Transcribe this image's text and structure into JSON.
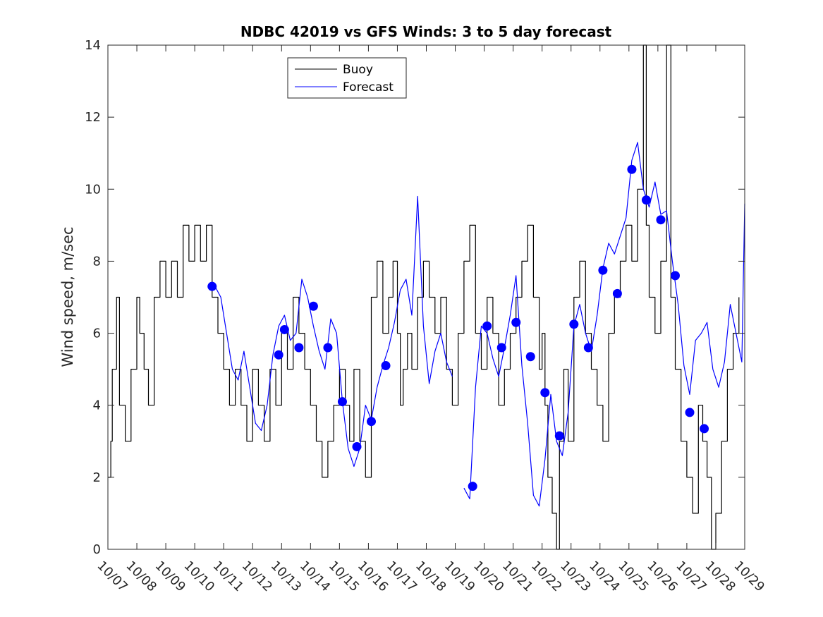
{
  "chart_data": {
    "type": "line",
    "title": "NDBC 42019 vs GFS Winds: 3 to 5 day forecast",
    "xlabel": "",
    "ylabel": "Wind speed, m/sec",
    "xlim": [
      7,
      29
    ],
    "ylim": [
      0,
      14
    ],
    "yticks": [
      0,
      2,
      4,
      6,
      8,
      10,
      12,
      14
    ],
    "xtick_values": [
      7,
      8,
      9,
      10,
      11,
      12,
      13,
      14,
      15,
      16,
      17,
      18,
      19,
      20,
      21,
      22,
      23,
      24,
      25,
      26,
      27,
      28,
      29
    ],
    "xtick_labels": [
      "10/07",
      "10/08",
      "10/09",
      "10/10",
      "10/11",
      "10/12",
      "10/13",
      "10/14",
      "10/15",
      "10/16",
      "10/17",
      "10/18",
      "10/19",
      "10/20",
      "10/21",
      "10/22",
      "10/23",
      "10/24",
      "10/25",
      "10/26",
      "10/27",
      "10/28",
      "10/29"
    ],
    "legend": {
      "location": "top-left",
      "entries": [
        "Buoy",
        "Forecast"
      ]
    },
    "colors": {
      "buoy": "#000000",
      "forecast": "#0000ff",
      "marker": "#0000ff"
    },
    "series": [
      {
        "name": "Buoy",
        "x": [
          7.0,
          7.1,
          7.15,
          7.3,
          7.4,
          7.6,
          7.8,
          8.0,
          8.1,
          8.25,
          8.4,
          8.6,
          8.8,
          9.0,
          9.2,
          9.4,
          9.6,
          9.8,
          10.0,
          10.2,
          10.4,
          10.6,
          10.8,
          11.0,
          11.2,
          11.4,
          11.6,
          11.8,
          12.0,
          12.2,
          12.4,
          12.6,
          12.8,
          13.0,
          13.2,
          13.4,
          13.6,
          13.8,
          14.0,
          14.2,
          14.4,
          14.6,
          14.8,
          15.0,
          15.2,
          15.35,
          15.5,
          15.7,
          15.9,
          16.1,
          16.3,
          16.5,
          16.7,
          16.85,
          17.0,
          17.1,
          17.2,
          17.35,
          17.5,
          17.7,
          17.9,
          18.1,
          18.3,
          18.5,
          18.7,
          18.9,
          19.1,
          19.3,
          19.5,
          19.7,
          19.9,
          20.1,
          20.3,
          20.5,
          20.7,
          20.9,
          21.1,
          21.3,
          21.5,
          21.7,
          21.9,
          22.0,
          22.1,
          22.2,
          22.35,
          22.5,
          22.6,
          22.75,
          22.9,
          23.1,
          23.3,
          23.5,
          23.7,
          23.9,
          24.1,
          24.3,
          24.5,
          24.7,
          24.9,
          25.1,
          25.3,
          25.5,
          25.6,
          25.7,
          25.9,
          26.1,
          26.3,
          26.45,
          26.6,
          26.8,
          27.0,
          27.2,
          27.4,
          27.55,
          27.7,
          27.85,
          28.0,
          28.2,
          28.4,
          28.6,
          28.8
        ],
        "values": [
          2,
          3,
          5,
          7,
          4,
          3,
          5,
          7,
          6,
          5,
          4,
          7,
          8,
          7,
          8,
          7,
          9,
          8,
          9,
          8,
          9,
          7,
          6,
          5,
          4,
          5,
          4,
          3,
          5,
          4,
          3,
          5,
          4,
          6,
          5,
          7,
          6,
          5,
          4,
          3,
          2,
          3,
          4,
          5,
          4,
          3,
          5,
          3,
          2,
          7,
          8,
          6,
          7,
          8,
          6,
          4,
          5,
          6,
          5,
          7,
          8,
          7,
          6,
          7,
          5,
          4,
          6,
          8,
          9,
          6,
          5,
          7,
          6,
          4,
          5,
          6,
          7,
          8,
          9,
          7,
          5,
          6,
          4,
          2,
          1,
          0,
          3,
          5,
          3,
          7,
          8,
          6,
          5,
          4,
          3,
          6,
          7,
          8,
          9,
          8,
          10,
          14,
          9,
          7,
          6,
          8,
          14,
          7,
          5,
          3,
          2,
          1,
          4,
          3,
          2,
          0,
          1,
          3,
          5,
          6,
          7
        ]
      },
      {
        "name": "Forecast",
        "x": [
          10.7,
          10.9,
          11.1,
          11.3,
          11.5,
          11.7,
          11.9,
          12.1,
          12.3,
          12.5,
          12.7,
          12.9,
          13.1,
          13.3,
          13.5,
          13.7,
          13.9,
          14.1,
          14.3,
          14.5,
          14.7,
          14.9,
          15.1,
          15.3,
          15.5,
          15.7,
          15.9,
          16.1,
          16.3,
          16.5,
          16.7,
          16.9,
          17.1,
          17.3,
          17.5,
          17.7,
          17.9,
          18.1,
          18.3,
          18.5,
          18.7,
          18.9,
          19.1,
          19.3,
          19.5,
          19.7,
          19.9,
          20.1,
          20.3,
          20.5,
          20.7,
          20.9,
          21.1,
          21.3,
          21.5,
          21.7,
          21.9,
          22.1,
          22.3,
          22.5,
          22.7,
          22.9,
          23.1,
          23.3,
          23.5,
          23.7,
          23.9,
          24.1,
          24.3,
          24.5,
          24.7,
          24.9,
          25.1,
          25.3,
          25.5,
          25.7,
          25.9,
          26.1,
          26.3,
          26.5,
          26.7,
          26.9,
          27.1,
          27.3,
          27.5,
          27.7,
          27.9,
          28.1,
          28.3,
          28.5,
          28.7,
          28.9,
          29.0
        ],
        "values": [
          7.3,
          7,
          6,
          5,
          4.7,
          5.5,
          4.5,
          3.5,
          3.3,
          4,
          5.4,
          6.2,
          6.5,
          5.8,
          6,
          7.5,
          7,
          6.2,
          5.5,
          5,
          6.4,
          6,
          4.1,
          2.8,
          2.3,
          2.8,
          4,
          3.6,
          4.5,
          5.1,
          5.6,
          6.3,
          7.2,
          7.5,
          6.5,
          9.8,
          6.2,
          4.6,
          5.5,
          6,
          5.2,
          4.8,
          null,
          1.7,
          1.4,
          4.5,
          6.2,
          6,
          5.3,
          4.8,
          5.6,
          6.5,
          7.6,
          5.1,
          3.5,
          1.5,
          1.2,
          2.5,
          4.3,
          3,
          2.6,
          3.8,
          6.2,
          6.8,
          6,
          5.5,
          6.5,
          7.8,
          8.5,
          8.2,
          8.7,
          9.2,
          10.8,
          11.3,
          10,
          9.5,
          10.2,
          9.3,
          9.4,
          8,
          6.8,
          5.1,
          4.3,
          5.8,
          6,
          6.3,
          5,
          4.5,
          5.2,
          6.8,
          6,
          5.2,
          9.6
        ]
      }
    ],
    "markers": {
      "name": "Forecast points",
      "x": [
        10.6,
        12.9,
        13.1,
        13.6,
        14.1,
        14.6,
        15.1,
        15.6,
        16.1,
        16.6,
        19.6,
        20.1,
        20.6,
        21.1,
        21.6,
        22.1,
        22.6,
        23.1,
        23.6,
        24.1,
        24.6,
        25.1,
        25.6,
        26.1,
        26.6,
        27.1,
        27.6
      ],
      "values": [
        7.3,
        5.4,
        6.1,
        5.6,
        6.75,
        5.6,
        4.1,
        2.85,
        3.55,
        5.1,
        1.75,
        6.2,
        5.6,
        6.3,
        5.35,
        4.35,
        3.15,
        6.25,
        5.6,
        7.75,
        7.1,
        10.55,
        9.7,
        9.15,
        7.6,
        3.8,
        3.35
      ]
    }
  }
}
